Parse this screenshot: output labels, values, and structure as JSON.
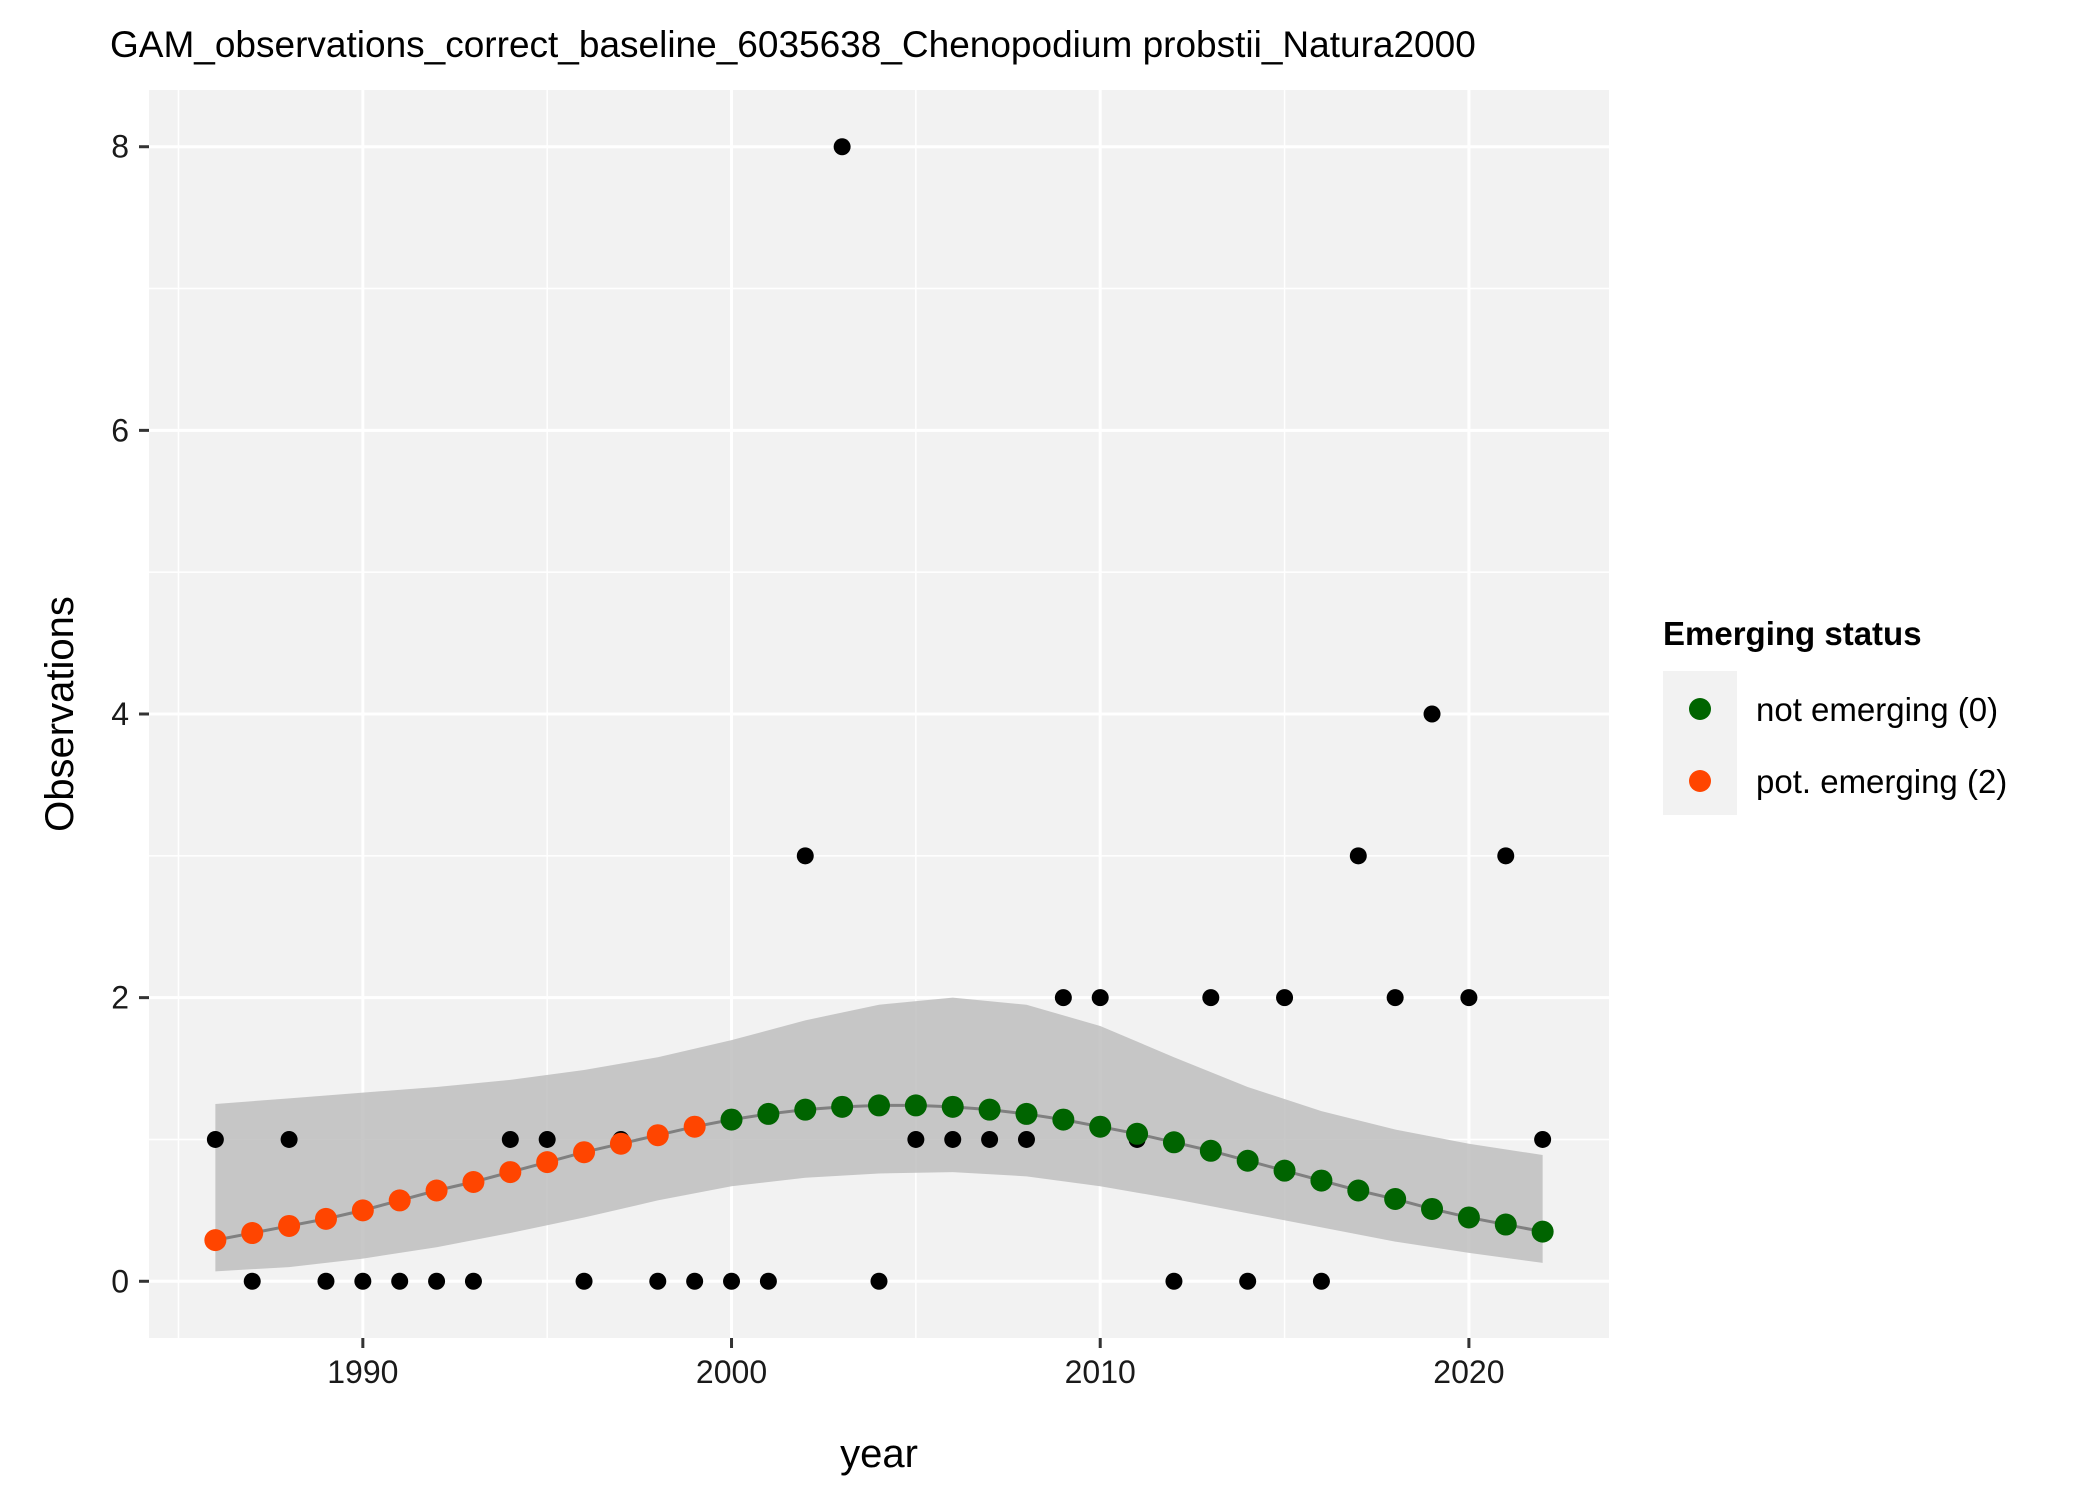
{
  "chart_data": {
    "type": "scatter",
    "title": "GAM_observations_correct_baseline_6035638_Chenopodium probstii_Natura2000",
    "xlabel": "year",
    "ylabel": "Observations",
    "xlim": [
      1984.2,
      2023.8
    ],
    "ylim": [
      -0.4,
      8.4
    ],
    "x_ticks": [
      1990,
      2000,
      2010,
      2020
    ],
    "y_ticks": [
      0,
      2,
      4,
      6,
      8
    ],
    "x_tick_labels": [
      "1990",
      "2000",
      "2010",
      "2020"
    ],
    "y_tick_labels": [
      "0",
      "2",
      "4",
      "6",
      "8"
    ],
    "grid": true,
    "legend_position": "right",
    "legend": {
      "title": "Emerging status",
      "entries": [
        {
          "label": "not emerging (0)",
          "color": "#006400"
        },
        {
          "label": "pot. emerging (2)",
          "color": "#FF4500"
        }
      ]
    },
    "observations": {
      "color": "#000000",
      "x": [
        1986,
        1987,
        1988,
        1989,
        1990,
        1991,
        1992,
        1993,
        1994,
        1995,
        1996,
        1997,
        1998,
        1999,
        2000,
        2001,
        2002,
        2003,
        2004,
        2005,
        2006,
        2007,
        2008,
        2009,
        2010,
        2011,
        2012,
        2013,
        2014,
        2015,
        2016,
        2017,
        2018,
        2019,
        2020,
        2021,
        2022
      ],
      "y": [
        1,
        0,
        1,
        0,
        0,
        0,
        0,
        0,
        1,
        1,
        0,
        1,
        0,
        0,
        0,
        0,
        3,
        8,
        0,
        1,
        1,
        1,
        1,
        2,
        2,
        1,
        0,
        2,
        0,
        2,
        0,
        3,
        2,
        4,
        2,
        3,
        1
      ]
    },
    "series": [
      {
        "name": "not emerging (0)",
        "color": "#006400",
        "x": [
          2000,
          2001,
          2002,
          2003,
          2004,
          2005,
          2006,
          2007,
          2008,
          2009,
          2010,
          2011,
          2012,
          2013,
          2014,
          2015,
          2016,
          2017,
          2018,
          2019,
          2020,
          2021,
          2022
        ],
        "y": [
          1.14,
          1.18,
          1.21,
          1.23,
          1.24,
          1.24,
          1.23,
          1.21,
          1.18,
          1.14,
          1.09,
          1.04,
          0.98,
          0.92,
          0.85,
          0.78,
          0.71,
          0.64,
          0.58,
          0.51,
          0.45,
          0.4,
          0.35
        ]
      },
      {
        "name": "pot. emerging (2)",
        "color": "#FF4500",
        "x": [
          1986,
          1987,
          1988,
          1989,
          1990,
          1991,
          1992,
          1993,
          1994,
          1995,
          1996,
          1997,
          1998,
          1999
        ],
        "y": [
          0.29,
          0.34,
          0.39,
          0.44,
          0.5,
          0.57,
          0.64,
          0.7,
          0.77,
          0.84,
          0.91,
          0.97,
          1.03,
          1.09
        ]
      }
    ],
    "fit_line": {
      "color": "#808080",
      "x": [
        1986,
        1987,
        1988,
        1989,
        1990,
        1991,
        1992,
        1993,
        1994,
        1995,
        1996,
        1997,
        1998,
        1999,
        2000,
        2001,
        2002,
        2003,
        2004,
        2005,
        2006,
        2007,
        2008,
        2009,
        2010,
        2011,
        2012,
        2013,
        2014,
        2015,
        2016,
        2017,
        2018,
        2019,
        2020,
        2021,
        2022
      ],
      "y": [
        0.29,
        0.34,
        0.39,
        0.44,
        0.5,
        0.57,
        0.64,
        0.7,
        0.77,
        0.84,
        0.91,
        0.97,
        1.03,
        1.09,
        1.14,
        1.18,
        1.21,
        1.23,
        1.24,
        1.24,
        1.23,
        1.21,
        1.18,
        1.14,
        1.09,
        1.04,
        0.98,
        0.92,
        0.85,
        0.78,
        0.71,
        0.64,
        0.58,
        0.51,
        0.45,
        0.4,
        0.35
      ]
    },
    "confidence_band": {
      "color": "#BEBEBE",
      "x": [
        1986,
        1988,
        1990,
        1992,
        1994,
        1996,
        1998,
        2000,
        2002,
        2004,
        2006,
        2008,
        2010,
        2012,
        2014,
        2016,
        2018,
        2020,
        2022
      ],
      "lower": [
        0.07,
        0.1,
        0.16,
        0.24,
        0.34,
        0.45,
        0.57,
        0.67,
        0.73,
        0.76,
        0.77,
        0.74,
        0.67,
        0.58,
        0.48,
        0.38,
        0.28,
        0.2,
        0.13
      ],
      "upper": [
        1.25,
        1.29,
        1.33,
        1.37,
        1.42,
        1.49,
        1.58,
        1.7,
        1.84,
        1.95,
        2.0,
        1.95,
        1.8,
        1.58,
        1.37,
        1.2,
        1.07,
        0.97,
        0.89
      ]
    }
  }
}
